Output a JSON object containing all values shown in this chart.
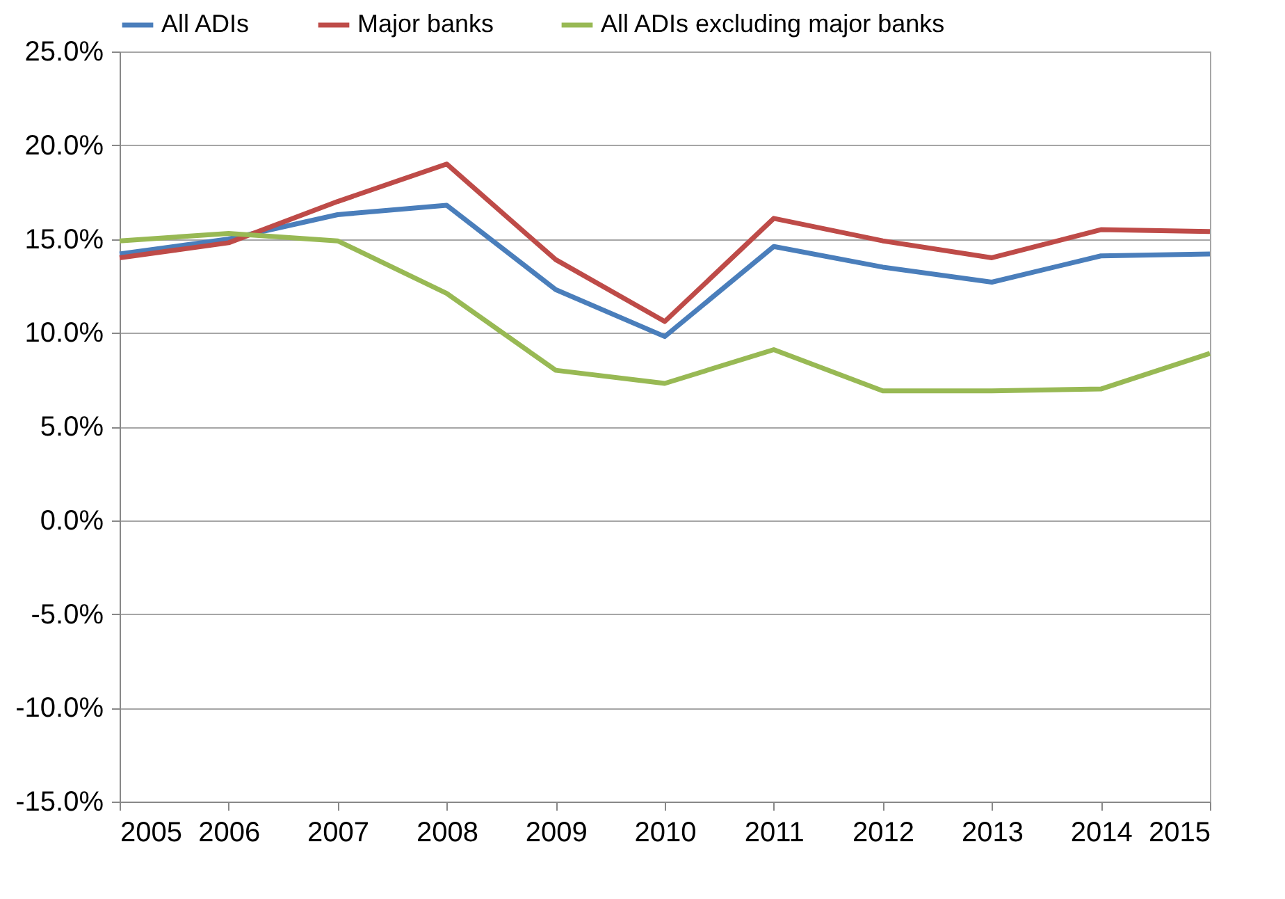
{
  "chart_data": {
    "type": "line",
    "categories": [
      "2005",
      "2006",
      "2007",
      "2008",
      "2009",
      "2010",
      "2011",
      "2012",
      "2013",
      "2014",
      "2015"
    ],
    "series": [
      {
        "name": "All ADIs",
        "color": "#4a7ebb",
        "values": [
          14.2,
          15.0,
          16.3,
          16.8,
          12.3,
          9.8,
          14.6,
          13.5,
          12.7,
          14.1,
          14.2
        ]
      },
      {
        "name": "Major banks",
        "color": "#be4b48",
        "values": [
          14.0,
          14.8,
          17.0,
          19.0,
          13.9,
          10.6,
          16.1,
          14.9,
          14.0,
          15.5,
          15.4
        ]
      },
      {
        "name": "All ADIs excluding major banks",
        "color": "#98b954",
        "values": [
          14.9,
          15.3,
          14.9,
          12.1,
          8.0,
          7.3,
          9.1,
          6.9,
          6.9,
          7.0,
          8.9
        ]
      }
    ],
    "ylim": [
      -15,
      25
    ],
    "yticks": [
      {
        "value": -15,
        "label": "-15.0%"
      },
      {
        "value": -10,
        "label": "-10.0%"
      },
      {
        "value": -5,
        "label": "-5.0%"
      },
      {
        "value": 0,
        "label": "0.0%"
      },
      {
        "value": 5,
        "label": "5.0%"
      },
      {
        "value": 10,
        "label": "10.0%"
      },
      {
        "value": 15,
        "label": "15.0%"
      },
      {
        "value": 20,
        "label": "20.0%"
      },
      {
        "value": 25,
        "label": "25.0%"
      }
    ],
    "grid": "y",
    "legend": "top",
    "marker": "none",
    "line_style": "solid"
  }
}
